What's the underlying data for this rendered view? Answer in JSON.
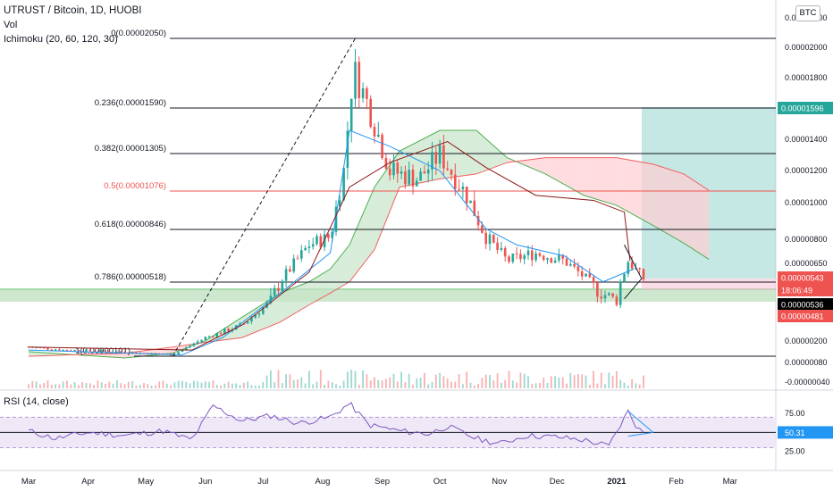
{
  "header": {
    "symbol": "UTRUST / Bitcoin, 1D, HUOBI",
    "volume_label": "Vol",
    "ichimoku_label": "Ichimoku (20, 60, 120, 30)",
    "currency_badge": "BTC"
  },
  "chart_data": [
    {
      "type": "line",
      "title": "UTRUST / Bitcoin, 1D, HUOBI",
      "x_tick_labels": [
        "Mar",
        "Apr",
        "May",
        "Jun",
        "Jul",
        "Aug",
        "Sep",
        "Oct",
        "Nov",
        "Dec",
        "2021",
        "Feb",
        "Mar"
      ],
      "y_tick_labels": [
        "0.00002200",
        "0.00002000",
        "0.00001800",
        "0.00001400",
        "0.00001200",
        "0.00001000",
        "0.00000800",
        "0.00000650",
        "0.00000200",
        "0.00000080",
        "-0.00000040"
      ],
      "price_series_approx": [
        [
          "2020-03-01",
          1.6e-06
        ],
        [
          "2020-03-20",
          1.4e-06
        ],
        [
          "2020-04-15",
          1.3e-06
        ],
        [
          "2020-05-15",
          1.1e-06
        ],
        [
          "2020-06-01",
          2.2e-06
        ],
        [
          "2020-06-20",
          3e-06
        ],
        [
          "2020-07-05",
          4.5e-06
        ],
        [
          "2020-07-25",
          7.5e-06
        ],
        [
          "2020-08-05",
          8e-06
        ],
        [
          "2020-08-12",
          1.2e-05
        ],
        [
          "2020-08-17",
          1.85e-05
        ],
        [
          "2020-08-25",
          1.6e-05
        ],
        [
          "2020-09-05",
          1.2e-05
        ],
        [
          "2020-09-20",
          1.15e-05
        ],
        [
          "2020-10-01",
          1.3e-05
        ],
        [
          "2020-10-15",
          1.05e-05
        ],
        [
          "2020-10-25",
          8e-06
        ],
        [
          "2020-11-05",
          6.5e-06
        ],
        [
          "2020-11-20",
          7e-06
        ],
        [
          "2020-12-05",
          6.5e-06
        ],
        [
          "2020-12-20",
          5e-06
        ],
        [
          "2021-01-01",
          4.5e-06
        ],
        [
          "2021-01-07",
          6.5e-06
        ],
        [
          "2021-01-15",
          5.4e-06
        ]
      ],
      "fibonacci_levels": [
        {
          "label": "0(0.00002050)",
          "value": 2.05e-05
        },
        {
          "label": "0.236(0.00001590)",
          "value": 1.59e-05
        },
        {
          "label": "0.382(0.00001305)",
          "value": 1.305e-05
        },
        {
          "label": "0.5(0.00001076)",
          "value": 1.076e-05
        },
        {
          "label": "0.618(0.00000846)",
          "value": 8.46e-06
        },
        {
          "label": "0.786(0.00000518)",
          "value": 5.18e-06
        },
        {
          "label": "1(0.00000101)",
          "value": 1.01e-06
        }
      ],
      "price_tags": [
        {
          "text": "0.00001596",
          "color": "#26a69a"
        },
        {
          "text": "0.00000543",
          "color": "#ef5350"
        },
        {
          "text": "18:06:49",
          "color": "#ef5350"
        },
        {
          "text": "0.00000536",
          "color": "#000000"
        },
        {
          "text": "0.00000481",
          "color": "#ef5350"
        }
      ],
      "annotations": {
        "support_zone": [
          4.5e-06,
          4.9e-06
        ],
        "target_zone": [
          5.4e-06,
          1.596e-05
        ]
      }
    },
    {
      "type": "line",
      "title": "RSI (14, close)",
      "y_tick_labels": [
        "75.00",
        "25.00"
      ],
      "band": [
        30,
        70
      ],
      "current_value": "50.31",
      "values_approx": [
        [
          "2020-03-01",
          52
        ],
        [
          "2020-03-15",
          42
        ],
        [
          "2020-04-01",
          50
        ],
        [
          "2020-04-20",
          46
        ],
        [
          "2020-05-10",
          52
        ],
        [
          "2020-05-25",
          40
        ],
        [
          "2020-06-05",
          85
        ],
        [
          "2020-06-20",
          65
        ],
        [
          "2020-07-05",
          72
        ],
        [
          "2020-07-20",
          62
        ],
        [
          "2020-08-05",
          70
        ],
        [
          "2020-08-15",
          88
        ],
        [
          "2020-08-25",
          60
        ],
        [
          "2020-09-10",
          52
        ],
        [
          "2020-09-25",
          48
        ],
        [
          "2020-10-05",
          58
        ],
        [
          "2020-10-20",
          42
        ],
        [
          "2020-11-01",
          35
        ],
        [
          "2020-11-15",
          46
        ],
        [
          "2020-12-01",
          44
        ],
        [
          "2020-12-15",
          40
        ],
        [
          "2020-12-28",
          32
        ],
        [
          "2021-01-07",
          78
        ],
        [
          "2021-01-12",
          55
        ],
        [
          "2021-01-15",
          50.31
        ]
      ]
    }
  ],
  "rsi_label": "RSI (14, close)",
  "colors": {
    "up": "#26a69a",
    "down": "#ef5350",
    "blue": "#2196f3",
    "maroon": "#8b1a1a",
    "green_cloud": "#4caf50",
    "red_cloud": "#f06060",
    "rsi_line": "#7e57c2",
    "rsi_band": "#ede7f6"
  }
}
